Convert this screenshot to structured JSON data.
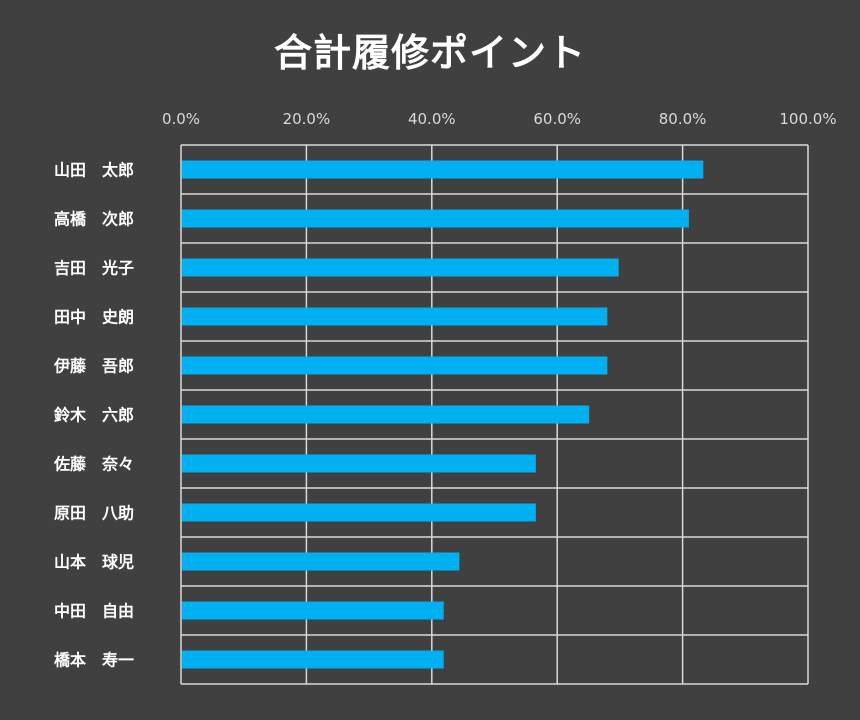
{
  "chart_data": {
    "type": "bar",
    "orientation": "horizontal",
    "title": "合計履修ポイント",
    "xlabel": "",
    "ylabel": "",
    "xlim": [
      0,
      100
    ],
    "x_ticks": [
      "0.0%",
      "20.0%",
      "40.0%",
      "60.0%",
      "80.0%",
      "100.0%"
    ],
    "tick_values": [
      0,
      20,
      40,
      60,
      80,
      100
    ],
    "x_axis_position": "top",
    "grid": true,
    "legend": "none",
    "categories": [
      "山田　太郎",
      "高橋　次郎",
      "吉田　光子",
      "田中　史朗",
      "伊藤　吾郎",
      "鈴木　六郎",
      "佐藤　奈々",
      "原田　八助",
      "山本　球児",
      "中田　自由",
      "橋本　寿一"
    ],
    "values": [
      83.3,
      81.0,
      69.8,
      68.0,
      68.0,
      65.1,
      56.6,
      56.6,
      44.4,
      41.9,
      41.9
    ],
    "bar_color": "#00b0f0",
    "background_color": "#404040",
    "grid_color": "#d9d9d9"
  }
}
